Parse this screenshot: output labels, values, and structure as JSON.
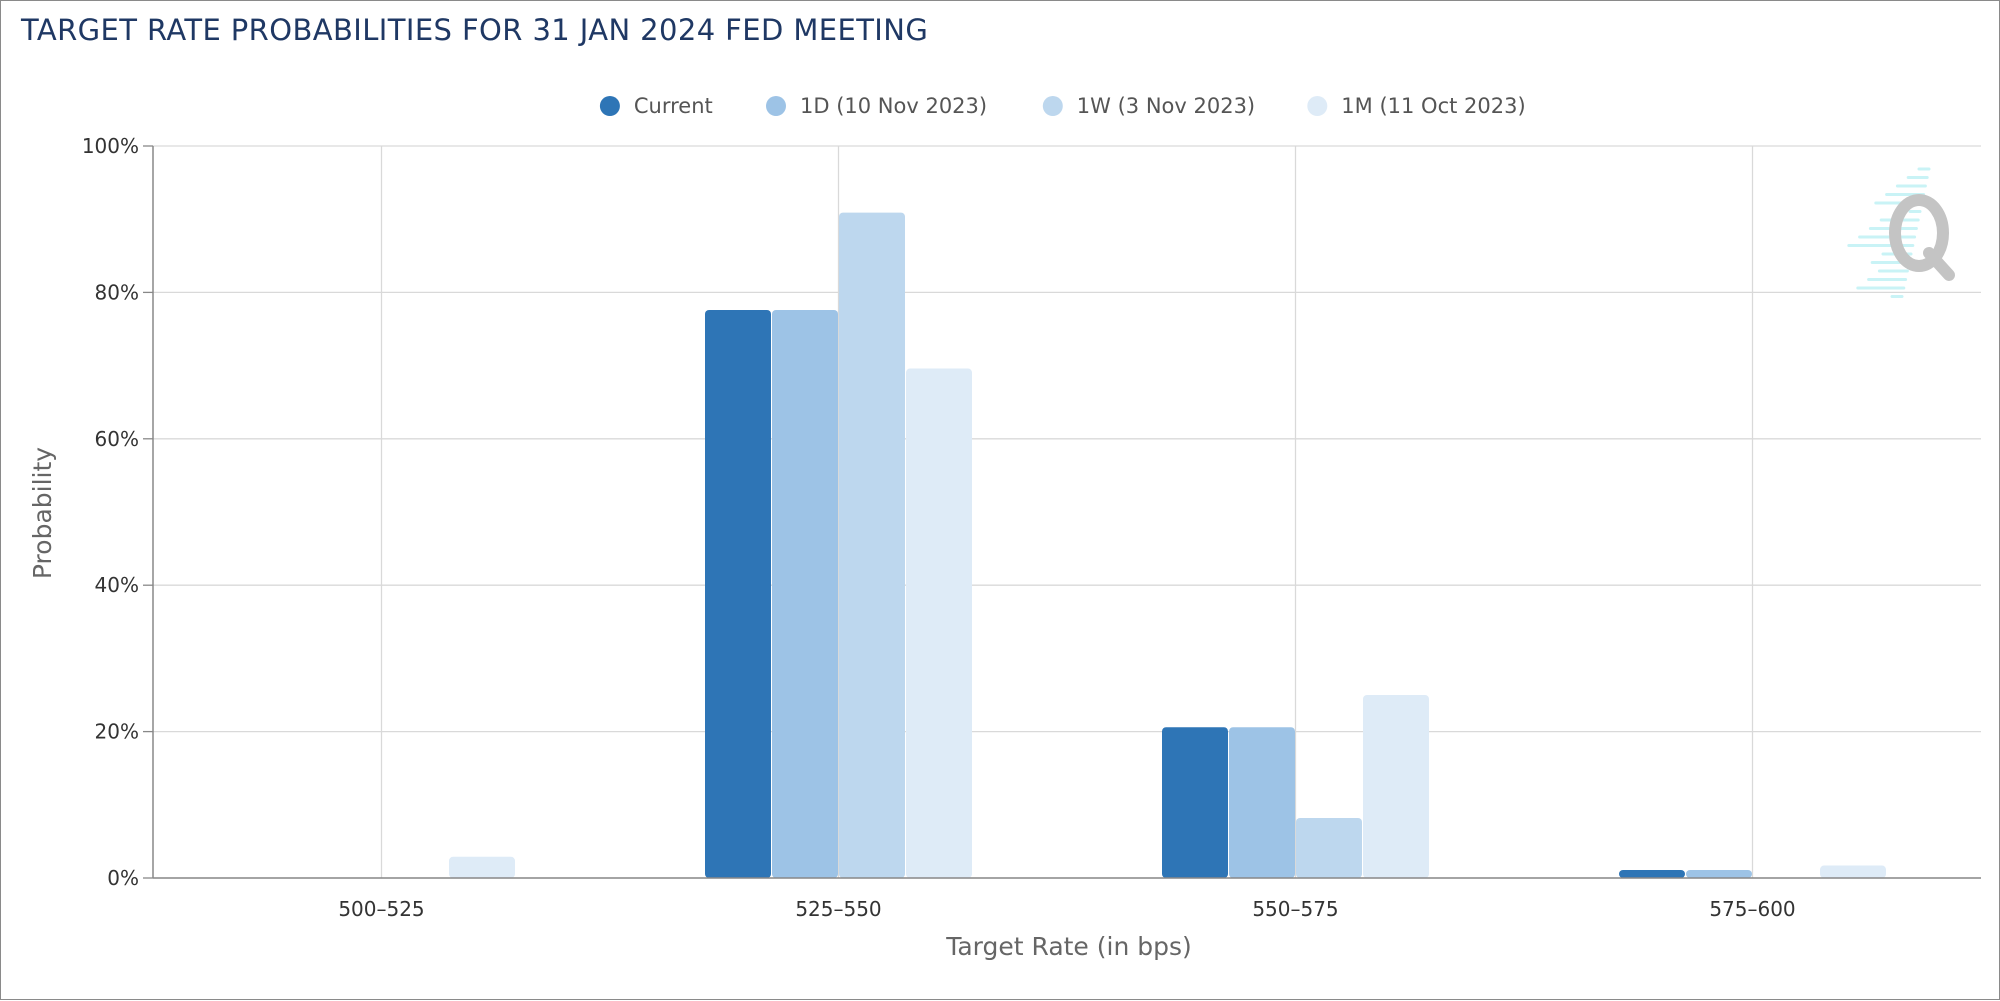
{
  "chart_data": {
    "type": "bar",
    "title": "TARGET RATE PROBABILITIES FOR 31 JAN 2024 FED MEETING",
    "xlabel": "Target Rate (in bps)",
    "ylabel": "Probability",
    "categories": [
      "500-525",
      "525-550",
      "550-575",
      "575-600"
    ],
    "series": [
      {
        "name": "Current",
        "color": "#2e75b6",
        "values": [
          0.0,
          77.6,
          20.6,
          1.1
        ]
      },
      {
        "name": "1D (10 Nov 2023)",
        "color": "#9dc3e6",
        "values": [
          0.0,
          77.6,
          20.6,
          1.1
        ]
      },
      {
        "name": "1W (3 Nov 2023)",
        "color": "#bdd7ee",
        "values": [
          0.0,
          90.9,
          8.2,
          0.0
        ]
      },
      {
        "name": "1M (11 Oct 2023)",
        "color": "#deebf7",
        "values": [
          2.9,
          69.6,
          25.0,
          1.7
        ]
      }
    ],
    "yticks": [
      "0%",
      "20%",
      "40%",
      "60%",
      "80%",
      "100%"
    ],
    "ylim": [
      0,
      100
    ],
    "grid": true,
    "legend_position": "top-center"
  },
  "colors": {
    "title": "#1f3864",
    "grid": "#d9d9d9",
    "axis": "#888888",
    "watermark_letter": "#c4c4c4",
    "watermark_lines": "#c9f3f6"
  }
}
